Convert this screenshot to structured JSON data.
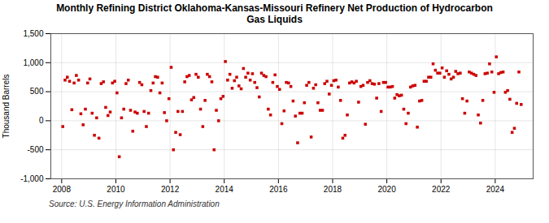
{
  "chart_data": {
    "type": "scatter",
    "title": "Monthly Refining District Oklahoma-Kansas-Missouri Refinery Net Production of Hydrocarbon\nGas Liquids",
    "ylabel": "Thousand Barrels",
    "source": "Source: U.S. Energy Information Administration",
    "color": "#cc0000",
    "marker": "square",
    "grid": true,
    "xlim": [
      2007.6,
      2025.4
    ],
    "xticks": [
      2008,
      2010,
      2012,
      2014,
      2016,
      2018,
      2020,
      2022,
      2024
    ],
    "ylim": [
      -1000,
      1500
    ],
    "yticks": [
      {
        "value": -1000,
        "label": "-1,000"
      },
      -500,
      0,
      500,
      {
        "value": 1000,
        "label": "1,000"
      },
      {
        "value": 1500,
        "label": "1,500"
      }
    ],
    "x": [
      2008.0416666666667,
      2008.125,
      2008.2083333333333,
      2008.2916666666667,
      2008.375,
      2008.4583333333333,
      2008.5416666666667,
      2008.625,
      2008.7083333333333,
      2008.7916666666667,
      2008.875,
      2008.9583333333333,
      2009.0416666666667,
      2009.125,
      2009.2083333333333,
      2009.2916666666667,
      2009.375,
      2009.4583333333333,
      2009.5416666666667,
      2009.625,
      2009.7083333333333,
      2009.7916666666667,
      2009.875,
      2009.9583333333333,
      2010.0416666666667,
      2010.125,
      2010.2083333333333,
      2010.2916666666667,
      2010.375,
      2010.4583333333333,
      2010.5416666666667,
      2010.625,
      2010.7083333333333,
      2010.7916666666667,
      2010.875,
      2010.9583333333333,
      2011.0416666666667,
      2011.125,
      2011.2083333333333,
      2011.2916666666667,
      2011.375,
      2011.4583333333333,
      2011.5416666666667,
      2011.625,
      2011.7083333333333,
      2011.7916666666667,
      2011.875,
      2011.9583333333333,
      2012.0416666666667,
      2012.125,
      2012.2083333333333,
      2012.2916666666667,
      2012.375,
      2012.4583333333333,
      2012.5416666666667,
      2012.625,
      2012.7083333333333,
      2012.7916666666667,
      2012.875,
      2012.9583333333333,
      2013.0416666666667,
      2013.125,
      2013.2083333333333,
      2013.2916666666667,
      2013.375,
      2013.4583333333333,
      2013.5416666666667,
      2013.625,
      2013.7083333333333,
      2013.7916666666667,
      2013.875,
      2013.9583333333333,
      2014.0416666666667,
      2014.125,
      2014.2083333333333,
      2014.2916666666667,
      2014.375,
      2014.4583333333333,
      2014.5416666666667,
      2014.625,
      2014.7083333333333,
      2014.7916666666667,
      2014.875,
      2014.9583333333333,
      2015.0416666666667,
      2015.125,
      2015.2083333333333,
      2015.2916666666667,
      2015.375,
      2015.4583333333333,
      2015.5416666666667,
      2015.625,
      2015.7083333333333,
      2015.7916666666667,
      2015.875,
      2015.9583333333333,
      2016.0416666666667,
      2016.125,
      2016.2083333333333,
      2016.2916666666667,
      2016.375,
      2016.4583333333333,
      2016.5416666666667,
      2016.625,
      2016.7083333333333,
      2016.7916666666667,
      2016.875,
      2016.9583333333333,
      2017.0416666666667,
      2017.125,
      2017.2083333333333,
      2017.2916666666667,
      2017.375,
      2017.4583333333333,
      2017.5416666666667,
      2017.625,
      2017.7083333333333,
      2017.7916666666667,
      2017.875,
      2017.9583333333333,
      2018.0416666666667,
      2018.125,
      2018.2083333333333,
      2018.2916666666667,
      2018.375,
      2018.4583333333333,
      2018.5416666666667,
      2018.625,
      2018.7083333333333,
      2018.7916666666667,
      2018.875,
      2018.9583333333333,
      2019.0416666666667,
      2019.125,
      2019.2083333333333,
      2019.2916666666667,
      2019.375,
      2019.4583333333333,
      2019.5416666666667,
      2019.625,
      2019.7083333333333,
      2019.7916666666667,
      2019.875,
      2019.9583333333333,
      2020.0416666666667,
      2020.125,
      2020.2083333333333,
      2020.2916666666667,
      2020.375,
      2020.4583333333333,
      2020.5416666666667,
      2020.625,
      2020.7083333333333,
      2020.7916666666667,
      2020.875,
      2020.9583333333333,
      2021.0416666666667,
      2021.125,
      2021.2083333333333,
      2021.2916666666667,
      2021.375,
      2021.4583333333333,
      2021.5416666666667,
      2021.625,
      2021.7083333333333,
      2021.7916666666667,
      2021.875,
      2021.9583333333333,
      2022.0416666666667,
      2022.125,
      2022.2083333333333,
      2022.2916666666667,
      2022.375,
      2022.4583333333333,
      2022.5416666666667,
      2022.625,
      2022.7083333333333,
      2022.7916666666667,
      2022.875,
      2022.9583333333333,
      2023.0416666666667,
      2023.125,
      2023.2083333333333,
      2023.2916666666667,
      2023.375,
      2023.4583333333333,
      2023.5416666666667,
      2023.625,
      2023.7083333333333,
      2023.7916666666667,
      2023.875,
      2023.9583333333333,
      2024.0416666666667,
      2024.125,
      2024.2083333333333,
      2024.2916666666667,
      2024.375,
      2024.4583333333333,
      2024.5416666666667,
      2024.625,
      2024.7083333333333,
      2024.7916666666667,
      2024.875,
      2024.9583333333333
    ],
    "values": [
      -100,
      700,
      750,
      680,
      190,
      650,
      780,
      700,
      120,
      -70,
      200,
      650,
      720,
      130,
      -250,
      50,
      -300,
      640,
      670,
      230,
      90,
      150,
      650,
      680,
      480,
      -620,
      50,
      200,
      640,
      700,
      180,
      -180,
      150,
      130,
      660,
      620,
      160,
      -100,
      130,
      520,
      650,
      760,
      750,
      480,
      650,
      140,
      0,
      380,
      920,
      -500,
      -200,
      160,
      -240,
      160,
      670,
      760,
      780,
      360,
      400,
      800,
      750,
      200,
      -100,
      350,
      800,
      760,
      670,
      -500,
      180,
      0,
      380,
      420,
      1020,
      700,
      800,
      560,
      690,
      750,
      600,
      550,
      900,
      750,
      820,
      700,
      810,
      660,
      570,
      410,
      820,
      780,
      760,
      200,
      100,
      660,
      790,
      590,
      540,
      -50,
      170,
      660,
      650,
      590,
      340,
      80,
      -380,
      130,
      130,
      310,
      610,
      660,
      -280,
      560,
      620,
      310,
      180,
      180,
      640,
      680,
      460,
      610,
      690,
      700,
      580,
      350,
      -300,
      -250,
      100,
      650,
      670,
      650,
      680,
      320,
      590,
      610,
      -60,
      660,
      690,
      640,
      630,
      390,
      640,
      160,
      660,
      660,
      580,
      580,
      590,
      390,
      450,
      430,
      440,
      200,
      -50,
      130,
      580,
      600,
      610,
      -110,
      340,
      350,
      680,
      680,
      750,
      750,
      980,
      870,
      820,
      820,
      910,
      750,
      860,
      800,
      720,
      750,
      850,
      810,
      820,
      380,
      130,
      340,
      840,
      820,
      800,
      780,
      100,
      -40,
      350,
      810,
      820,
      980,
      840,
      490,
      1100,
      810,
      830,
      840,
      490,
      520,
      370,
      -200,
      -130,
      300,
      840,
      280
    ]
  }
}
